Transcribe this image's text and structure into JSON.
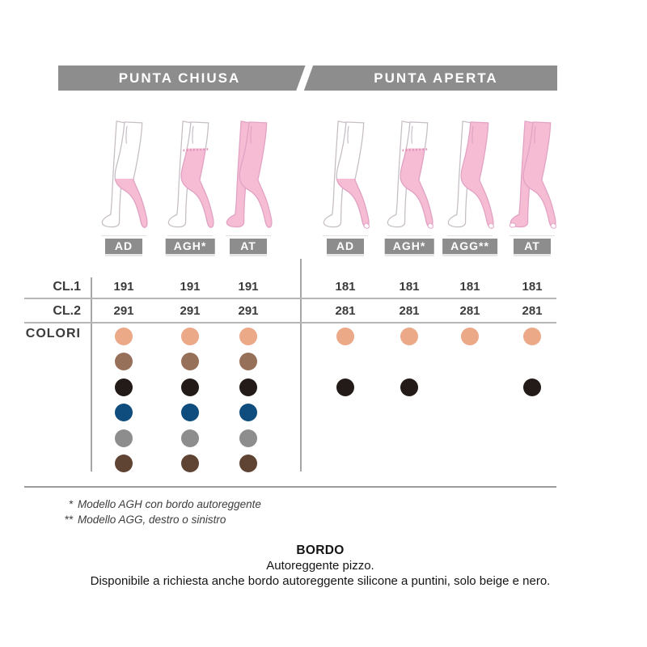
{
  "header": {
    "left": "PUNTA CHIUSA",
    "right": "PUNTA APERTA",
    "bar_color": "#8d8d8d"
  },
  "row_labels": {
    "cl1": "CL.1",
    "cl2": "CL.2",
    "colors": "COLORI"
  },
  "palette": {
    "beige": "#eca988",
    "brown": "#97705a",
    "black": "#221b17",
    "blue": "#0e4d7d",
    "gray": "#8d8d8d",
    "dark_brown": "#5f4434"
  },
  "palette_order": [
    "beige",
    "brown",
    "black",
    "blue",
    "gray",
    "dark_brown"
  ],
  "groups": [
    {
      "name": "punta-chiusa",
      "toe": "closed",
      "models": [
        {
          "label": "AD",
          "type": "AD",
          "cl1": "191",
          "cl2": "291",
          "colors": [
            "beige",
            "brown",
            "black",
            "blue",
            "gray",
            "dark_brown"
          ]
        },
        {
          "label": "AGH*",
          "type": "AGH",
          "cl1": "191",
          "cl2": "291",
          "colors": [
            "beige",
            "brown",
            "black",
            "blue",
            "gray",
            "dark_brown"
          ]
        },
        {
          "label": "AT",
          "type": "AT",
          "cl1": "191",
          "cl2": "291",
          "colors": [
            "beige",
            "brown",
            "black",
            "blue",
            "gray",
            "dark_brown"
          ]
        }
      ]
    },
    {
      "name": "punta-aperta",
      "toe": "open",
      "models": [
        {
          "label": "AD",
          "type": "AD",
          "cl1": "181",
          "cl2": "281",
          "colors": [
            "beige",
            "black"
          ]
        },
        {
          "label": "AGH*",
          "type": "AGH",
          "cl1": "181",
          "cl2": "281",
          "colors": [
            "beige",
            "black"
          ]
        },
        {
          "label": "AGG**",
          "type": "AGG",
          "cl1": "181",
          "cl2": "281",
          "colors": [
            "beige"
          ]
        },
        {
          "label": "AT",
          "type": "AT",
          "cl1": "181",
          "cl2": "281",
          "colors": [
            "beige",
            "black"
          ]
        }
      ]
    }
  ],
  "footnotes": [
    {
      "star": "*",
      "text": "Modello AGH con bordo autoreggente"
    },
    {
      "star": "**",
      "text": "Modello AGG, destro o sinistro"
    }
  ],
  "bordo": {
    "title": "BORDO",
    "line1": "Autoreggente pizzo.",
    "line2": "Disponibile a richiesta anche bordo autoreggente silicone a puntini, solo beige e nero."
  }
}
